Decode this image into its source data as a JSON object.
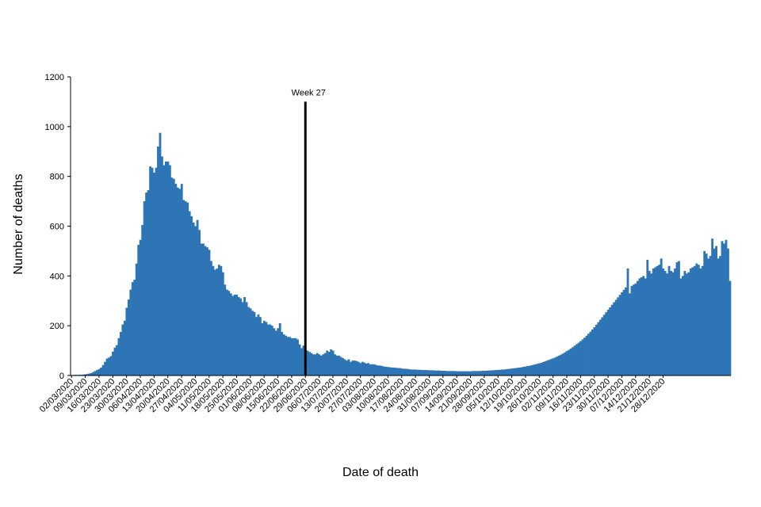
{
  "chart_data": {
    "type": "bar",
    "title": "",
    "xlabel": "Date of death",
    "ylabel": "Number of deaths",
    "ylim": [
      0,
      1200
    ],
    "yticks": [
      0,
      200,
      400,
      600,
      800,
      1000,
      1200
    ],
    "start_date": "02/03/2020",
    "xtick_labels": [
      "02/03/2020",
      "09/03/2020",
      "16/03/2020",
      "23/03/2020",
      "30/03/2020",
      "06/04/2020",
      "13/04/2020",
      "20/04/2020",
      "27/04/2020",
      "04/05/2020",
      "11/05/2020",
      "18/05/2020",
      "25/05/2020",
      "01/06/2020",
      "08/06/2020",
      "15/06/2020",
      "22/06/2020",
      "29/06/2020",
      "06/07/2020",
      "13/07/2020",
      "20/07/2020",
      "27/07/2020",
      "03/08/2020",
      "10/08/2020",
      "17/08/2020",
      "24/08/2020",
      "31/08/2020",
      "07/09/2020",
      "14/09/2020",
      "21/09/2020",
      "28/09/2020",
      "05/10/2020",
      "12/10/2020",
      "19/10/2020",
      "26/10/2020",
      "02/11/2020",
      "09/11/2020",
      "16/11/2020",
      "23/11/2020",
      "30/11/2020",
      "07/12/2020",
      "14/12/2020",
      "21/12/2020",
      "28/12/2020"
    ],
    "annotation": {
      "label": "Week 27",
      "date": "29/06/2020",
      "y_top": 1100
    },
    "bar_color": "#2e75b6",
    "series": [
      {
        "values": [
          2,
          2,
          3,
          2,
          3,
          3,
          4,
          5,
          6,
          8,
          10,
          14,
          18,
          22,
          26,
          32,
          42,
          55,
          68,
          72,
          78,
          96,
          112,
          122,
          150,
          175,
          205,
          220,
          272,
          305,
          345,
          375,
          385,
          450,
          525,
          545,
          605,
          700,
          735,
          745,
          840,
          835,
          815,
          835,
          920,
          975,
          880,
          845,
          860,
          860,
          845,
          795,
          790,
          770,
          755,
          750,
          770,
          705,
          700,
          695,
          660,
          640,
          615,
          600,
          625,
          585,
          530,
          530,
          520,
          515,
          505,
          460,
          440,
          425,
          430,
          445,
          440,
          415,
          365,
          345,
          340,
          330,
          320,
          325,
          325,
          315,
          310,
          295,
          315,
          295,
          275,
          270,
          260,
          255,
          235,
          245,
          235,
          210,
          220,
          215,
          205,
          205,
          200,
          190,
          180,
          190,
          210,
          175,
          165,
          160,
          155,
          155,
          150,
          150,
          150,
          145,
          125,
          110,
          120,
          95,
          100,
          95,
          90,
          85,
          85,
          90,
          85,
          80,
          85,
          90,
          100,
          95,
          105,
          100,
          85,
          80,
          80,
          75,
          70,
          65,
          60,
          65,
          55,
          60,
          60,
          58,
          55,
          50,
          55,
          52,
          48,
          50,
          45,
          45,
          45,
          42,
          40,
          40,
          38,
          36,
          35,
          34,
          33,
          32,
          32,
          31,
          30,
          30,
          28,
          27,
          27,
          26,
          25,
          24,
          24,
          24,
          23,
          23,
          22,
          22,
          22,
          22,
          21,
          21,
          21,
          20,
          20,
          20,
          19,
          19,
          19,
          18,
          18,
          18,
          18,
          18,
          17,
          17,
          17,
          17,
          17,
          17,
          17,
          17,
          18,
          18,
          18,
          18,
          18,
          19,
          19,
          19,
          20,
          20,
          21,
          21,
          22,
          22,
          23,
          24,
          24,
          25,
          26,
          27,
          28,
          29,
          30,
          31,
          32,
          33,
          35,
          36,
          38,
          39,
          41,
          43,
          45,
          47,
          49,
          51,
          54,
          57,
          60,
          63,
          66,
          69,
          72,
          76,
          80,
          84,
          88,
          93,
          98,
          103,
          108,
          114,
          120,
          126,
          132,
          138,
          145,
          152,
          160,
          168,
          176,
          185,
          194,
          204,
          214,
          224,
          234,
          244,
          254,
          264,
          274,
          284,
          294,
          304,
          314,
          324,
          334,
          344,
          354,
          430,
          330,
          360,
          365,
          370,
          380,
          390,
          395,
          400,
          390,
          465,
          420,
          410,
          430,
          435,
          440,
          445,
          470,
          430,
          420,
          410,
          440,
          420,
          415,
          430,
          455,
          460,
          390,
          400,
          420,
          410,
          415,
          430,
          435,
          440,
          450,
          445,
          430,
          440,
          500,
          490,
          470,
          480,
          550,
          510,
          520,
          470,
          480,
          540,
          530,
          545,
          510,
          380
        ]
      }
    ]
  }
}
